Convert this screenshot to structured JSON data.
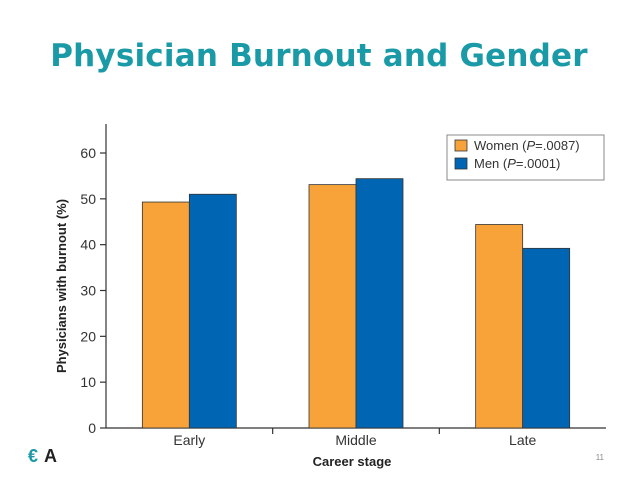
{
  "slide": {
    "title": "Physician Burnout and Gender",
    "page_number": "11",
    "logo_glyph": "€",
    "logo_letter": "A"
  },
  "colors": {
    "title": "#1a9aa6",
    "women": "#f7a33a",
    "men": "#0066b3"
  },
  "chart_data": {
    "type": "bar",
    "xlabel": "Career stage",
    "ylabel": "Physicians with burnout (%)",
    "categories": [
      "Early",
      "Middle",
      "Late"
    ],
    "ylim": [
      0,
      65
    ],
    "yticks": [
      0,
      10,
      20,
      30,
      40,
      50,
      60
    ],
    "grid": false,
    "legend_position": "top-right",
    "series": [
      {
        "name_prefix": "Women (",
        "name_p": "P",
        "name_suffix": "=.0087)",
        "color": "#f7a33a",
        "values": [
          49.3,
          53.1,
          44.4
        ]
      },
      {
        "name_prefix": "Men (",
        "name_p": "P",
        "name_suffix": "=.0001)",
        "color": "#0066b3",
        "values": [
          51.0,
          54.4,
          39.2
        ]
      }
    ]
  }
}
